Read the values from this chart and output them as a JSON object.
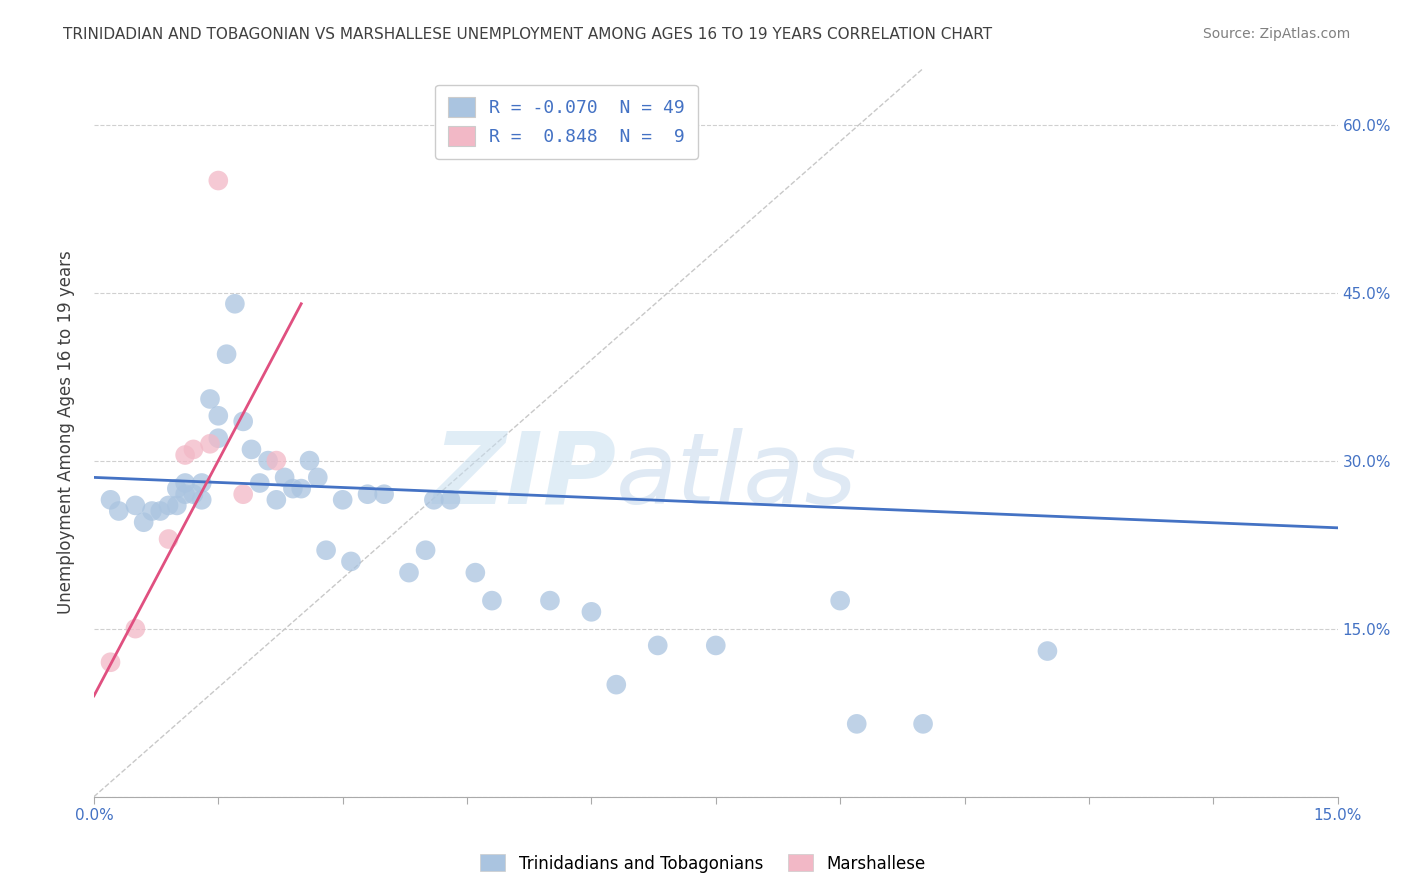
{
  "title": "TRINIDADIAN AND TOBAGONIAN VS MARSHALLESE UNEMPLOYMENT AMONG AGES 16 TO 19 YEARS CORRELATION CHART",
  "source": "Source: ZipAtlas.com",
  "ylabel": "Unemployment Among Ages 16 to 19 years",
  "xlim": [
    0.0,
    0.15
  ],
  "ylim": [
    0.0,
    0.65
  ],
  "xticks": [
    0.0,
    0.015,
    0.03,
    0.045,
    0.06,
    0.075,
    0.09,
    0.105,
    0.12,
    0.135,
    0.15
  ],
  "xticklabels_show": [
    "0.0%",
    "",
    "",
    "",
    "",
    "",
    "",
    "",
    "",
    "",
    "15.0%"
  ],
  "yticks_right": [
    0.0,
    0.15,
    0.3,
    0.45,
    0.6
  ],
  "yticklabels_right": [
    "",
    "15.0%",
    "30.0%",
    "45.0%",
    "60.0%"
  ],
  "blue_scatter_x": [
    0.002,
    0.003,
    0.005,
    0.006,
    0.007,
    0.008,
    0.009,
    0.01,
    0.01,
    0.011,
    0.011,
    0.012,
    0.013,
    0.013,
    0.014,
    0.015,
    0.015,
    0.016,
    0.017,
    0.018,
    0.019,
    0.02,
    0.021,
    0.022,
    0.023,
    0.024,
    0.025,
    0.026,
    0.027,
    0.028,
    0.03,
    0.031,
    0.033,
    0.035,
    0.038,
    0.04,
    0.041,
    0.043,
    0.046,
    0.048,
    0.055,
    0.06,
    0.063,
    0.068,
    0.075,
    0.09,
    0.092,
    0.1,
    0.115
  ],
  "blue_scatter_y": [
    0.265,
    0.255,
    0.26,
    0.245,
    0.255,
    0.255,
    0.26,
    0.26,
    0.275,
    0.28,
    0.27,
    0.27,
    0.265,
    0.28,
    0.355,
    0.34,
    0.32,
    0.395,
    0.44,
    0.335,
    0.31,
    0.28,
    0.3,
    0.265,
    0.285,
    0.275,
    0.275,
    0.3,
    0.285,
    0.22,
    0.265,
    0.21,
    0.27,
    0.27,
    0.2,
    0.22,
    0.265,
    0.265,
    0.2,
    0.175,
    0.175,
    0.165,
    0.1,
    0.135,
    0.135,
    0.175,
    0.065,
    0.065,
    0.13
  ],
  "pink_scatter_x": [
    0.002,
    0.005,
    0.009,
    0.011,
    0.012,
    0.014,
    0.015,
    0.018,
    0.022
  ],
  "pink_scatter_y": [
    0.12,
    0.15,
    0.23,
    0.305,
    0.31,
    0.315,
    0.55,
    0.27,
    0.3
  ],
  "blue_line_x": [
    0.0,
    0.15
  ],
  "blue_line_y": [
    0.285,
    0.24
  ],
  "pink_line_x": [
    0.0,
    0.025
  ],
  "pink_line_y": [
    0.09,
    0.44
  ],
  "diag_line_x": [
    0.0,
    0.1
  ],
  "diag_line_y": [
    0.0,
    0.65
  ],
  "blue_R": "-0.070",
  "blue_N": "49",
  "pink_R": "0.848",
  "pink_N": "9",
  "blue_color": "#aac4e0",
  "pink_color": "#f2b8c6",
  "blue_line_color": "#4472c4",
  "pink_line_color": "#e05080",
  "diag_line_color": "#c8c8c8",
  "background_color": "#ffffff",
  "grid_color": "#d0d0d0",
  "legend_R_color": "#4472c4",
  "title_color": "#404040",
  "axis_label_color": "#404040",
  "tick_label_color": "#4472c4"
}
